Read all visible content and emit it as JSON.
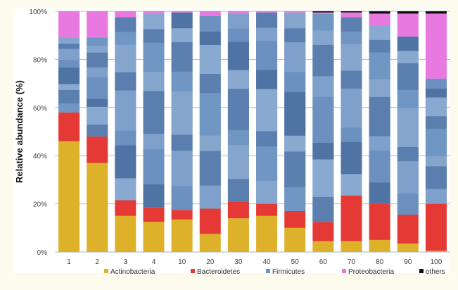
{
  "chart_data": {
    "type": "bar",
    "stacked": true,
    "title": "",
    "xlabel": "",
    "ylabel": "Relative abundance (%)",
    "ylim": [
      0,
      100
    ],
    "yticks": [
      "0%",
      "20%",
      "40%",
      "60%",
      "80%",
      "100%"
    ],
    "ytick_values": [
      0,
      20,
      40,
      60,
      80,
      100
    ],
    "grid": true,
    "legend_position": "bottom",
    "categories": [
      "1",
      "2",
      "3",
      "4",
      "10",
      "20",
      "30",
      "40",
      "50",
      "60",
      "70",
      "80",
      "90",
      "100"
    ],
    "series": [
      {
        "name": "Actinobacteria",
        "color": "#ddb12a",
        "values": [
          46,
          37,
          15,
          12.5,
          13.5,
          7.5,
          14,
          15,
          10,
          4.5,
          4.5,
          5,
          3.5,
          0.5
        ]
      },
      {
        "name": "Bacteroidetes",
        "color": "#e53935",
        "values": [
          12,
          11,
          6.5,
          6,
          4,
          10.5,
          7,
          5,
          7,
          8,
          19,
          15,
          12,
          19.5
        ]
      },
      {
        "name": "Firmicutes",
        "color": "#6f93c0",
        "values": [
          31,
          41,
          76,
          80.5,
          82,
          80,
          78,
          79.5,
          82.5,
          86.5,
          74,
          74,
          74,
          52
        ]
      },
      {
        "name": "Proteobacteria",
        "color": "#e879e0",
        "values": [
          11,
          11,
          2.5,
          1,
          0.5,
          2,
          1,
          0.5,
          0.5,
          0.5,
          2,
          5,
          9.5,
          27
        ]
      },
      {
        "name": "others",
        "color": "#111111",
        "values": [
          0,
          0,
          0,
          0,
          0,
          0,
          0,
          0,
          0,
          0.5,
          0.5,
          1,
          1,
          1
        ]
      }
    ]
  }
}
